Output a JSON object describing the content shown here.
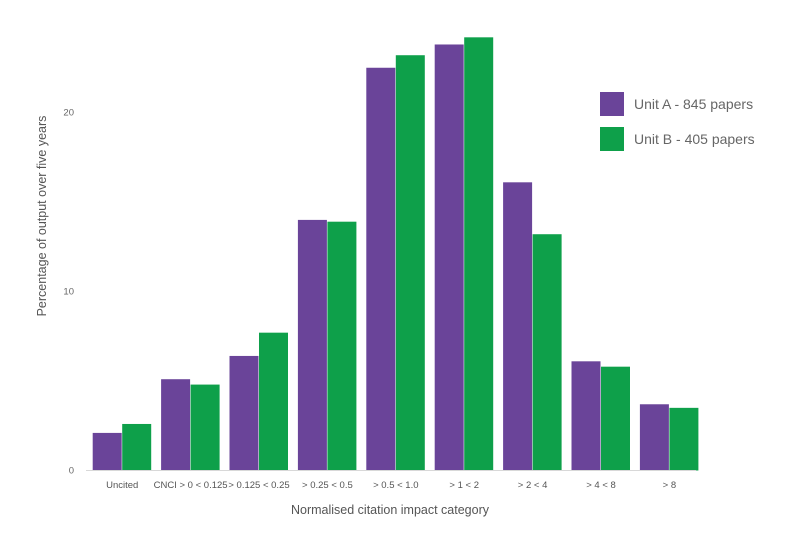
{
  "chart_data": {
    "type": "bar",
    "title": "",
    "xlabel": "Normalised citation impact category",
    "ylabel": "Percentage of output over five years",
    "ylim": [
      0,
      24.5
    ],
    "yticks": [
      "0",
      "10",
      "20"
    ],
    "grid": false,
    "legend_position": "right",
    "categories": [
      "Uncited",
      "CNCI > 0 < 0.125",
      "> 0.125 < 0.25",
      "> 0.25 < 0.5",
      "> 0.5 < 1.0",
      "> 1 < 2",
      "> 2 < 4",
      "> 4 < 8",
      "> 8"
    ],
    "series": [
      {
        "name": "Unit A - 845 papers",
        "color": "#6a4499",
        "values": [
          2.1,
          5.1,
          6.4,
          14.0,
          22.5,
          23.8,
          16.1,
          6.1,
          3.7
        ]
      },
      {
        "name": "Unit B - 405 papers",
        "color": "#0ea04a",
        "values": [
          2.6,
          4.8,
          7.7,
          13.9,
          23.2,
          24.2,
          13.2,
          5.8,
          3.5
        ]
      }
    ]
  }
}
